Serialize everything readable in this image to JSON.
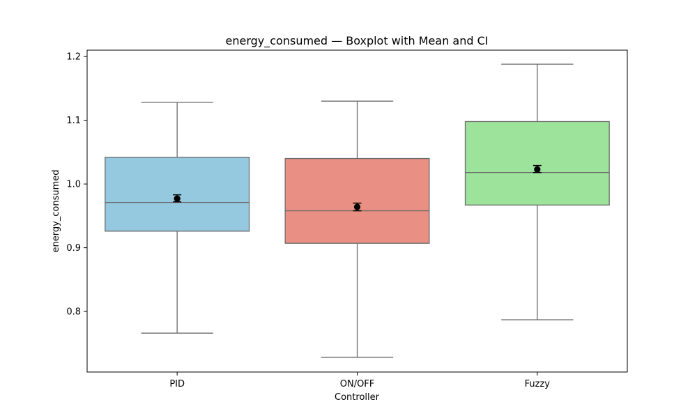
{
  "chart_data": {
    "type": "boxplot",
    "title": "energy_consumed — Boxplot with Mean and CI",
    "xlabel": "Controller",
    "ylabel": "energy_consumed",
    "ylim": [
      0.705,
      1.21
    ],
    "yticks": [
      0.8,
      0.9,
      1.0,
      1.1,
      1.2
    ],
    "ytick_labels": [
      "0.8",
      "0.9",
      "1.0",
      "1.1",
      "1.2"
    ],
    "grid": false,
    "categories": [
      "PID",
      "ON/OFF",
      "Fuzzy"
    ],
    "boxes": [
      {
        "category": "PID",
        "color": "#95c9df",
        "whisker_low": 0.766,
        "q1": 0.926,
        "median": 0.971,
        "q3": 1.042,
        "whisker_high": 1.128,
        "mean": 0.977,
        "ci_low": 0.972,
        "ci_high": 0.983
      },
      {
        "category": "ON/OFF",
        "color": "#e98f83",
        "whisker_low": 0.728,
        "q1": 0.907,
        "median": 0.958,
        "q3": 1.04,
        "whisker_high": 1.13,
        "mean": 0.964,
        "ci_low": 0.958,
        "ci_high": 0.97
      },
      {
        "category": "Fuzzy",
        "color": "#9de39c",
        "whisker_low": 0.787,
        "q1": 0.967,
        "median": 1.018,
        "q3": 1.098,
        "whisker_high": 1.188,
        "mean": 1.023,
        "ci_low": 1.018,
        "ci_high": 1.029
      }
    ]
  }
}
